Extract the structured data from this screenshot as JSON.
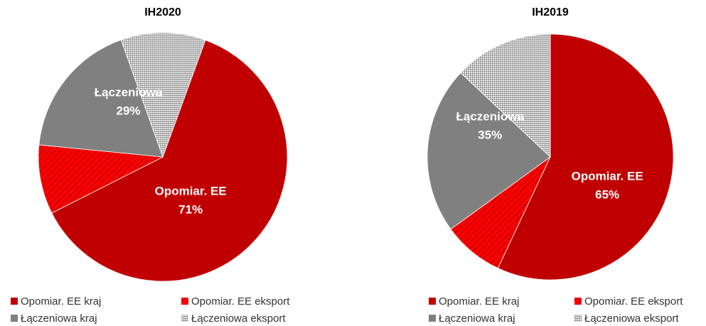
{
  "chart_data": [
    {
      "type": "pie",
      "title": "IH2020",
      "categories": [
        "Opomiar. EE kraj",
        "Opomiar. EE eksport",
        "Łączeniowa kraj",
        "Łączeniowa eksport"
      ],
      "values": [
        62,
        9,
        18,
        11
      ],
      "colors": [
        "#c00000",
        "#ff0000",
        "#808080",
        "#a6a6a6"
      ],
      "patterns": [
        "solid",
        "diagonal",
        "solid",
        "checker"
      ],
      "start_angle": 20,
      "group_labels": [
        {
          "name": "Opomiar. EE",
          "value": 71,
          "label": "71%"
        },
        {
          "name": "Łączeniowa",
          "value": 29,
          "label": "29%"
        }
      ]
    },
    {
      "type": "pie",
      "title": "IH2019",
      "categories": [
        "Opomiar. EE kraj",
        "Opomiar. EE eksport",
        "Łączeniowa kraj",
        "Łączeniowa eksport"
      ],
      "values": [
        57,
        8,
        22,
        13
      ],
      "colors": [
        "#c00000",
        "#ff0000",
        "#808080",
        "#a6a6a6"
      ],
      "patterns": [
        "solid",
        "diagonal",
        "solid",
        "checker"
      ],
      "start_angle": 0,
      "group_labels": [
        {
          "name": "Opomiar. EE",
          "value": 65,
          "label": "65%"
        },
        {
          "name": "Łączeniowa",
          "value": 35,
          "label": "35%"
        }
      ]
    }
  ]
}
